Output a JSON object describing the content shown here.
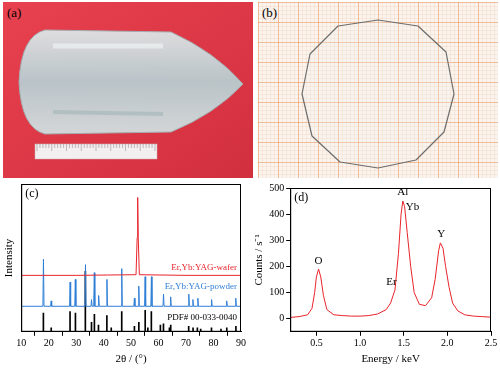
{
  "photos": [
    {
      "panel_label": "(a)"
    },
    {
      "panel_label": "(b)"
    }
  ],
  "chart_data": [
    {
      "type": "line",
      "panel_label": "(c)",
      "x_label": "2θ / (°)",
      "y_label": "Intensity",
      "xlim": [
        10,
        90
      ],
      "xticks": [
        10,
        20,
        30,
        40,
        50,
        60,
        70,
        80,
        90
      ],
      "ylim": [
        0,
        110
      ],
      "tick_labels": "x",
      "grid": false,
      "series": [
        {
          "name": "Er,Yb:YAG-wafer",
          "color": "#e8242b",
          "x": [
            10,
            30,
            51.8,
            52.2,
            52.4,
            52.6,
            53.0,
            70,
            90
          ],
          "values": [
            42,
            42,
            42.5,
            70,
            100,
            70,
            42.5,
            42,
            42
          ]
        },
        {
          "name": "Er,Yb:YAG-powder",
          "color": "#2f7fd6",
          "x": [
            10,
            17.9,
            18.1,
            18.3,
            20.7,
            20.9,
            21.1,
            27.6,
            27.8,
            28.0,
            29.5,
            29.7,
            29.9,
            33.2,
            33.4,
            33.6,
            35.4,
            35.6,
            35.8,
            36.4,
            36.6,
            36.8,
            38.0,
            38.2,
            38.4,
            41.0,
            41.2,
            41.4,
            46.4,
            46.6,
            46.8,
            51.0,
            51.2,
            51.4,
            52.6,
            52.8,
            53.0,
            54.9,
            55.1,
            55.3,
            57.2,
            57.4,
            57.6,
            61.6,
            61.8,
            62.0,
            64.2,
            64.4,
            64.6,
            70.8,
            71.0,
            71.2,
            72.3,
            72.5,
            72.7,
            74.1,
            74.3,
            74.5,
            79.1,
            79.3,
            79.5,
            84.6,
            84.8,
            85.0,
            87.9,
            88.1,
            88.3,
            90
          ],
          "values": [
            19,
            19,
            54,
            19,
            19,
            23,
            19,
            19,
            37,
            19,
            19,
            39,
            19,
            19,
            50,
            19,
            19,
            24,
            19,
            19,
            44,
            19,
            19,
            27,
            19,
            19,
            39,
            19,
            19,
            47,
            19,
            19,
            25,
            19,
            19,
            34,
            19,
            19,
            41,
            19,
            19,
            41,
            19,
            19,
            28,
            19,
            19,
            26,
            19,
            19,
            28,
            19,
            19,
            24,
            19,
            19,
            25,
            19,
            19,
            24,
            19,
            19,
            23,
            19,
            19,
            25,
            19,
            19
          ]
        },
        {
          "name": "PDF# 00-033-0040",
          "color": "#000000",
          "type": "bar",
          "x": [
            18.08,
            20.92,
            27.78,
            29.74,
            33.35,
            35.59,
            36.64,
            38.12,
            41.18,
            42.77,
            46.59,
            51.21,
            52.82,
            55.13,
            56.09,
            57.37,
            60.66,
            61.78,
            63.94,
            64.42,
            70.96,
            72.55,
            74.12,
            75.33,
            79.26,
            82.71,
            84.82,
            88.15
          ],
          "values": [
            14,
            3,
            15,
            14,
            45,
            7,
            13,
            5,
            12,
            3,
            15,
            4,
            7,
            16,
            3,
            15,
            5,
            6,
            3,
            5,
            4,
            3,
            3,
            2,
            3,
            2,
            3,
            4
          ]
        }
      ]
    },
    {
      "type": "line",
      "panel_label": "(d)",
      "x_label": "Energy / keV",
      "y_label": "Counts / s⁻¹",
      "xlim": [
        0.2,
        2.5
      ],
      "xticks": [
        0.5,
        {
          "value": 1,
          "label": "1.0"
        },
        1.5,
        {
          "value": 2,
          "label": "2.0"
        },
        2.5
      ],
      "ylim": [
        -50,
        500
      ],
      "yticks": [
        0,
        100,
        200,
        300,
        400,
        500
      ],
      "grid": false,
      "series": [
        {
          "color": "#e8242b",
          "x": [
            0.2,
            0.3,
            0.4,
            0.45,
            0.48,
            0.5,
            0.525,
            0.55,
            0.58,
            0.62,
            0.7,
            0.8,
            0.9,
            1.0,
            1.1,
            1.2,
            1.3,
            1.35,
            1.4,
            1.44,
            1.47,
            1.49,
            1.51,
            1.54,
            1.58,
            1.62,
            1.68,
            1.75,
            1.82,
            1.86,
            1.9,
            1.92,
            1.95,
            1.98,
            2.02,
            2.06,
            2.12,
            2.2,
            2.3,
            2.4,
            2.5
          ],
          "values": [
            5,
            8,
            15,
            40,
            100,
            160,
            190,
            160,
            90,
            35,
            15,
            12,
            10,
            10,
            12,
            18,
            35,
            60,
            110,
            250,
            400,
            450,
            430,
            330,
            200,
            100,
            55,
            50,
            80,
            150,
            260,
            290,
            270,
            200,
            120,
            60,
            30,
            15,
            10,
            8,
            6
          ]
        }
      ],
      "annotations": [
        {
          "text": "O",
          "x": 0.525,
          "y": 200
        },
        {
          "text": "Al",
          "x": 1.49,
          "y": 462
        },
        {
          "text": "Yb",
          "x": 1.6,
          "y": 405
        },
        {
          "text": "Er",
          "x": 1.36,
          "y": 120
        },
        {
          "text": "Y",
          "x": 1.93,
          "y": 302
        }
      ]
    }
  ]
}
